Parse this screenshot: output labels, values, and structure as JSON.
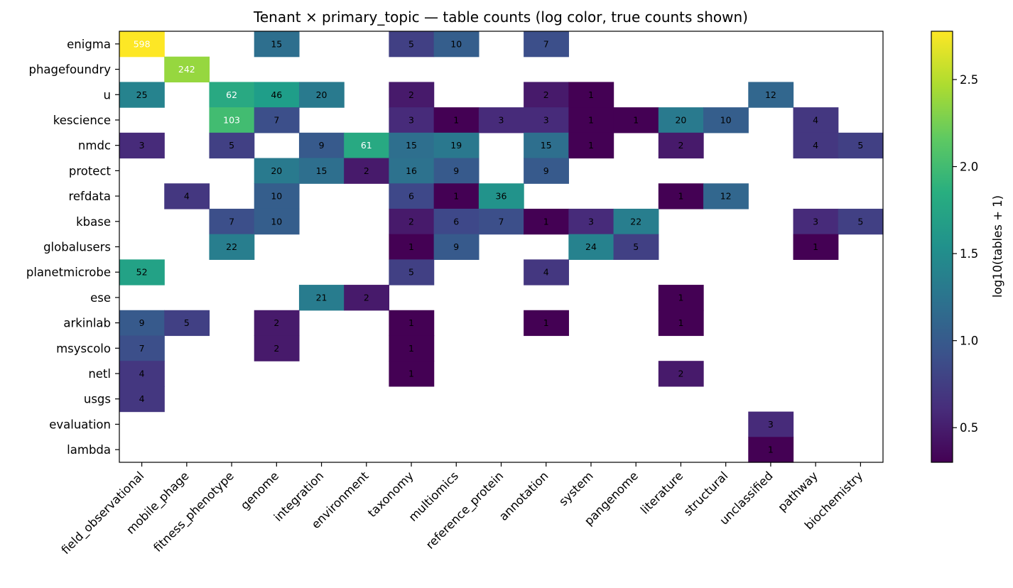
{
  "chart_data": {
    "type": "heatmap",
    "title": "Tenant × primary_topic — table counts (log color, true counts shown)",
    "xlabel": "",
    "ylabel": "",
    "rows": [
      "enigma",
      "phagefoundry",
      "u",
      "kescience",
      "nmdc",
      "protect",
      "refdata",
      "kbase",
      "globalusers",
      "planetmicrobe",
      "ese",
      "arkinlab",
      "msyscolo",
      "netl",
      "usgs",
      "evaluation",
      "lambda"
    ],
    "columns": [
      "field_observational",
      "mobile_phage",
      "fitness_phenotype",
      "genome",
      "integration",
      "environment",
      "taxonomy",
      "multiomics",
      "reference_protein",
      "annotation",
      "system",
      "pangenome",
      "literature",
      "structural",
      "unclassified",
      "pathway",
      "biochemistry"
    ],
    "values": [
      [
        598,
        null,
        null,
        15,
        null,
        null,
        5,
        10,
        null,
        7,
        null,
        null,
        null,
        null,
        null,
        null,
        null
      ],
      [
        null,
        242,
        null,
        null,
        null,
        null,
        null,
        null,
        null,
        null,
        null,
        null,
        null,
        null,
        null,
        null,
        null
      ],
      [
        25,
        null,
        62,
        46,
        20,
        null,
        2,
        null,
        null,
        2,
        1,
        null,
        null,
        null,
        12,
        null,
        null
      ],
      [
        null,
        null,
        103,
        7,
        null,
        null,
        3,
        1,
        3,
        3,
        1,
        1,
        20,
        10,
        null,
        4,
        null
      ],
      [
        3,
        null,
        5,
        null,
        9,
        61,
        15,
        19,
        null,
        15,
        1,
        null,
        2,
        null,
        null,
        4,
        5
      ],
      [
        null,
        null,
        null,
        20,
        15,
        2,
        16,
        9,
        null,
        9,
        null,
        null,
        null,
        null,
        null,
        null,
        null
      ],
      [
        null,
        4,
        null,
        10,
        null,
        null,
        6,
        1,
        36,
        null,
        null,
        null,
        1,
        12,
        null,
        null,
        null
      ],
      [
        null,
        null,
        7,
        10,
        null,
        null,
        2,
        6,
        7,
        1,
        3,
        22,
        null,
        null,
        null,
        3,
        5
      ],
      [
        null,
        null,
        22,
        null,
        null,
        null,
        1,
        9,
        null,
        null,
        24,
        5,
        null,
        null,
        null,
        1,
        null
      ],
      [
        52,
        null,
        null,
        null,
        null,
        null,
        5,
        null,
        null,
        4,
        null,
        null,
        null,
        null,
        null,
        null,
        null
      ],
      [
        null,
        null,
        null,
        null,
        21,
        2,
        null,
        null,
        null,
        null,
        null,
        null,
        1,
        null,
        null,
        null,
        null
      ],
      [
        9,
        5,
        null,
        2,
        null,
        null,
        1,
        null,
        null,
        1,
        null,
        null,
        1,
        null,
        null,
        null,
        null
      ],
      [
        7,
        null,
        null,
        2,
        null,
        null,
        1,
        null,
        null,
        null,
        null,
        null,
        null,
        null,
        null,
        null,
        null
      ],
      [
        4,
        null,
        null,
        null,
        null,
        null,
        1,
        null,
        null,
        null,
        null,
        null,
        2,
        null,
        null,
        null,
        null
      ],
      [
        4,
        null,
        null,
        null,
        null,
        null,
        null,
        null,
        null,
        null,
        null,
        null,
        null,
        null,
        null,
        null,
        null
      ],
      [
        null,
        null,
        null,
        null,
        null,
        null,
        null,
        null,
        null,
        null,
        null,
        null,
        null,
        null,
        3,
        null,
        null
      ],
      [
        null,
        null,
        null,
        null,
        null,
        null,
        null,
        null,
        null,
        null,
        null,
        null,
        null,
        null,
        1,
        null,
        null
      ]
    ],
    "color_scale": "log10(value + 1)",
    "colormap": "viridis",
    "colorbar": {
      "label": "log10(tables + 1)",
      "range": [
        0.30103,
        2.77743
      ],
      "ticks": [
        0.5,
        1.0,
        1.5,
        2.0,
        2.5
      ],
      "tick_labels": [
        "0.5",
        "1.0",
        "1.5",
        "2.0",
        "2.5"
      ]
    },
    "grid": false,
    "colorbar_placement": "right"
  }
}
